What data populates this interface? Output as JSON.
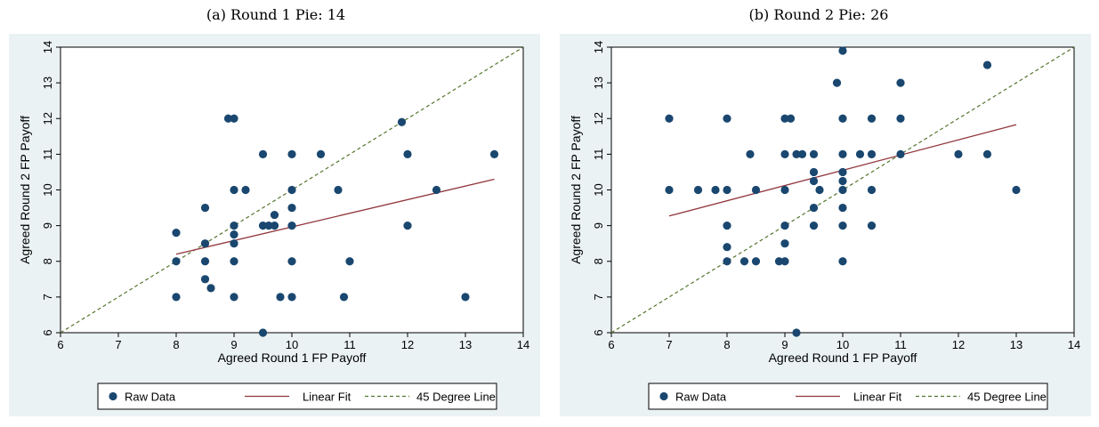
{
  "chart_data": [
    {
      "type": "scatter",
      "caption": "(a) Round 1 Pie: 14",
      "xlabel": "Agreed Round 1 FP Payoff",
      "ylabel": "Agreed Round 2 FP Payoff",
      "xlim": [
        6,
        14
      ],
      "ylim": [
        6,
        14
      ],
      "xticks": [
        "6",
        "7",
        "8",
        "9",
        "10",
        "11",
        "12",
        "13",
        "14"
      ],
      "yticks": [
        "6",
        "7",
        "8",
        "9",
        "10",
        "11",
        "12",
        "13",
        "14"
      ],
      "grid": false,
      "legend_position": "bottom",
      "legend": [
        "Raw Data",
        "Linear Fit",
        "45 Degree Line"
      ],
      "colors": {
        "background": "#EAF2F3",
        "points": "#1A476F",
        "fit": "#90353B",
        "diagonal": "#55752F"
      },
      "points": [
        [
          8,
          8.8
        ],
        [
          8,
          8
        ],
        [
          8,
          7
        ],
        [
          8.5,
          9.5
        ],
        [
          8.5,
          8.5
        ],
        [
          8.5,
          8
        ],
        [
          8.5,
          7.5
        ],
        [
          8.6,
          7.25
        ],
        [
          8.9,
          12
        ],
        [
          9,
          12
        ],
        [
          9,
          10
        ],
        [
          9,
          9
        ],
        [
          9,
          8.75
        ],
        [
          9,
          8.5
        ],
        [
          9,
          8
        ],
        [
          9,
          7
        ],
        [
          9.2,
          10
        ],
        [
          9.5,
          11
        ],
        [
          9.5,
          9
        ],
        [
          9.5,
          6
        ],
        [
          9.6,
          9
        ],
        [
          9.7,
          9.3
        ],
        [
          9.7,
          9
        ],
        [
          9.8,
          7
        ],
        [
          10,
          11
        ],
        [
          10,
          10
        ],
        [
          10,
          9.5
        ],
        [
          10,
          9
        ],
        [
          10,
          8
        ],
        [
          10,
          7
        ],
        [
          10.5,
          11
        ],
        [
          10.8,
          10
        ],
        [
          10.9,
          7
        ],
        [
          11,
          8
        ],
        [
          11.9,
          11.9
        ],
        [
          12,
          11
        ],
        [
          12,
          9
        ],
        [
          12.5,
          10
        ],
        [
          13,
          7
        ],
        [
          13.5,
          11
        ]
      ],
      "fit": {
        "x": [
          8,
          13.5
        ],
        "y": [
          8.2,
          10.3
        ]
      },
      "diagonal": {
        "x": [
          6,
          14
        ],
        "y": [
          6,
          14
        ]
      }
    },
    {
      "type": "scatter",
      "caption": "(b) Round 2 Pie: 26",
      "xlabel": "Agreed Round 1 FP Payoff",
      "ylabel": "Agreed Round 2 FP Payoff",
      "xlim": [
        6,
        14
      ],
      "ylim": [
        6,
        14
      ],
      "xticks": [
        "6",
        "7",
        "8",
        "9",
        "10",
        "11",
        "12",
        "13",
        "14"
      ],
      "yticks": [
        "6",
        "7",
        "8",
        "9",
        "10",
        "11",
        "12",
        "13",
        "14"
      ],
      "grid": false,
      "legend_position": "bottom",
      "legend": [
        "Raw Data",
        "Linear Fit",
        "45 Degree Line"
      ],
      "colors": {
        "background": "#EAF2F3",
        "points": "#1A476F",
        "fit": "#90353B",
        "diagonal": "#55752F"
      },
      "points": [
        [
          7,
          12
        ],
        [
          7,
          10
        ],
        [
          7.5,
          10
        ],
        [
          7.8,
          10
        ],
        [
          8,
          12
        ],
        [
          8,
          10
        ],
        [
          8,
          9
        ],
        [
          8,
          8.4
        ],
        [
          8,
          8
        ],
        [
          8.3,
          8
        ],
        [
          8.4,
          11
        ],
        [
          8.5,
          10
        ],
        [
          8.5,
          8
        ],
        [
          8.9,
          8
        ],
        [
          9,
          12
        ],
        [
          9,
          11
        ],
        [
          9,
          10
        ],
        [
          9,
          9
        ],
        [
          9,
          8.5
        ],
        [
          9,
          8
        ],
        [
          9.1,
          12
        ],
        [
          9.2,
          11
        ],
        [
          9.2,
          6
        ],
        [
          9.3,
          11
        ],
        [
          9.5,
          11
        ],
        [
          9.5,
          10.5
        ],
        [
          9.5,
          10.25
        ],
        [
          9.5,
          9.5
        ],
        [
          9.5,
          9
        ],
        [
          9.6,
          10
        ],
        [
          9.9,
          13
        ],
        [
          10,
          13.9
        ],
        [
          10,
          12
        ],
        [
          10,
          11
        ],
        [
          10,
          10.5
        ],
        [
          10,
          10.25
        ],
        [
          10,
          10
        ],
        [
          10,
          9.5
        ],
        [
          10,
          9
        ],
        [
          10,
          8
        ],
        [
          10.3,
          11
        ],
        [
          10.5,
          12
        ],
        [
          10.5,
          11
        ],
        [
          10.5,
          10
        ],
        [
          10.5,
          9
        ],
        [
          11,
          13
        ],
        [
          11,
          12
        ],
        [
          11,
          11
        ],
        [
          12,
          11
        ],
        [
          12.5,
          13.5
        ],
        [
          12.5,
          11
        ],
        [
          13,
          10
        ]
      ],
      "fit": {
        "x": [
          7,
          13
        ],
        "y": [
          9.27,
          11.83
        ]
      },
      "diagonal": {
        "x": [
          6,
          14
        ],
        "y": [
          6,
          14
        ]
      }
    }
  ]
}
